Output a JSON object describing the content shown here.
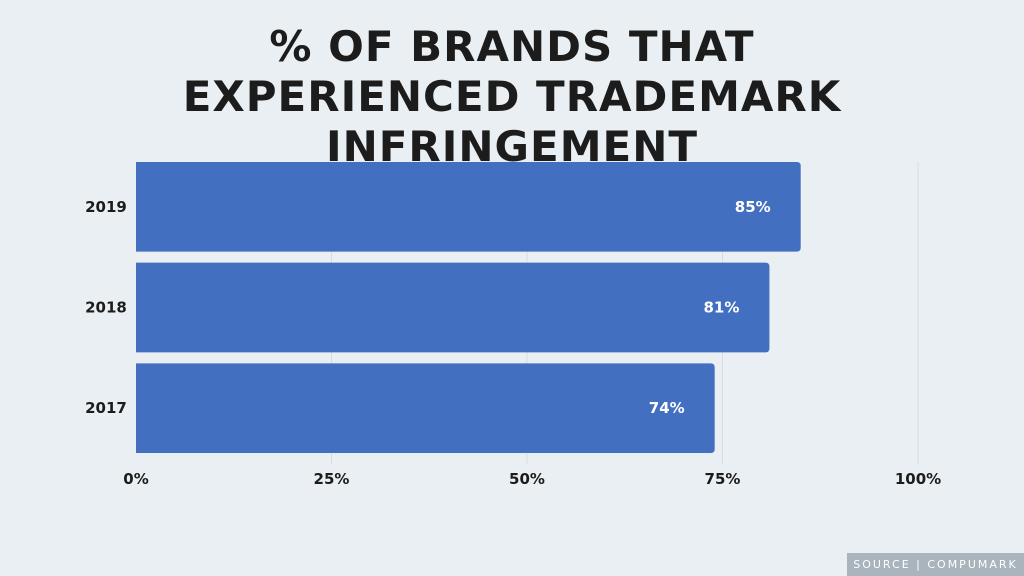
{
  "chart_data": {
    "type": "bar",
    "orientation": "horizontal",
    "title": "% OF BRANDS THAT EXPERIENCED TRADEMARK INFRINGEMENT",
    "categories": [
      "2019",
      "2018",
      "2017"
    ],
    "values": [
      85,
      81,
      74
    ],
    "value_labels": [
      "85%",
      "81%",
      "74%"
    ],
    "xlim": [
      0,
      100
    ],
    "xticks": [
      0,
      25,
      50,
      75,
      100
    ],
    "xtick_labels": [
      "0%",
      "25%",
      "50%",
      "75%",
      "100%"
    ],
    "grid": true,
    "bar_color": "#436fc0",
    "grid_color": "#d6dde1"
  },
  "source": "SOURCE | COMPUMARK"
}
